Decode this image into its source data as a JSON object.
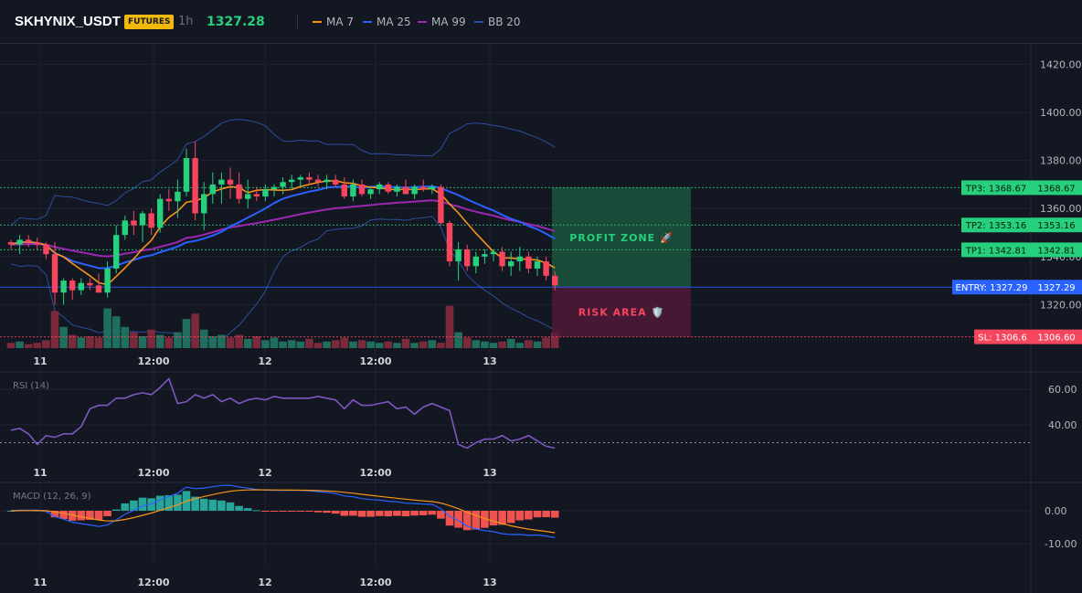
{
  "header": {
    "symbol": "SKHYNIX_USDT",
    "badge": "FUTURES",
    "timeframe": "1h",
    "price": "1327.28",
    "legend": [
      {
        "label": "MA 7",
        "color": "#f7931a"
      },
      {
        "label": "MA 25",
        "color": "#2962ff"
      },
      {
        "label": "MA 99",
        "color": "#9c27b0"
      },
      {
        "label": "BB 20",
        "color": "#1e3a8a"
      }
    ]
  },
  "colors": {
    "background": "#131722",
    "up": "#26d07c",
    "down": "#f6465d",
    "tp": "#26d07c",
    "entry": "#2962ff",
    "sl": "#f6465d",
    "rsi": "#7e57c2",
    "macd_line": "#2962ff",
    "signal_line": "#f7931a"
  },
  "annotations": {
    "profit_zone": "PROFIT ZONE 🚀",
    "risk_area": "RISK AREA 🛡️",
    "tp3_label": "TP3: 1368.67",
    "tp3_value": "1368.67",
    "tp2_label": "TP2: 1353.16",
    "tp2_value": "1353.16",
    "tp1_label": "TP1: 1342.81",
    "tp1_value": "1342.81",
    "entry_label": "ENTRY: 1327.29",
    "entry_value": "1327.29",
    "sl_label": "SL: 1306.6",
    "sl_value": "1306.60"
  },
  "chart_data": [
    {
      "type": "candlestick",
      "xlabels": [
        "11",
        "12:00",
        "12",
        "12:00",
        "13"
      ],
      "ylim": [
        1300,
        1430
      ],
      "yticks": [
        "1420.00",
        "1400.00",
        "1380.00",
        "1360.00",
        "1340.00",
        "1320.00"
      ],
      "levels": {
        "tp3": 1368.67,
        "tp2": 1353.16,
        "tp1": 1342.81,
        "entry": 1327.29,
        "sl": 1306.6
      },
      "candles": [
        [
          1346,
          1347,
          1343,
          1345
        ],
        [
          1345,
          1349,
          1341,
          1347
        ],
        [
          1347,
          1349,
          1344,
          1346
        ],
        [
          1346,
          1348,
          1343,
          1345
        ],
        [
          1345,
          1346,
          1339,
          1341
        ],
        [
          1341,
          1346,
          1320,
          1325
        ],
        [
          1325,
          1331,
          1320,
          1330
        ],
        [
          1330,
          1331,
          1322,
          1326
        ],
        [
          1326,
          1331,
          1324,
          1329
        ],
        [
          1329,
          1331,
          1326,
          1328
        ],
        [
          1328,
          1333,
          1325,
          1325
        ],
        [
          1325,
          1338,
          1323,
          1335
        ],
        [
          1335,
          1353,
          1333,
          1349
        ],
        [
          1349,
          1357,
          1347,
          1355
        ],
        [
          1355,
          1359,
          1349,
          1353
        ],
        [
          1353,
          1359,
          1346,
          1358
        ],
        [
          1358,
          1360,
          1349,
          1352
        ],
        [
          1352,
          1366,
          1350,
          1364
        ],
        [
          1364,
          1368,
          1359,
          1363
        ],
        [
          1363,
          1372,
          1356,
          1367
        ],
        [
          1367,
          1385,
          1365,
          1381
        ],
        [
          1381,
          1388,
          1355,
          1358
        ],
        [
          1358,
          1371,
          1351,
          1366
        ],
        [
          1366,
          1375,
          1362,
          1370
        ],
        [
          1370,
          1375,
          1362,
          1372
        ],
        [
          1372,
          1377,
          1364,
          1370
        ],
        [
          1370,
          1375,
          1362,
          1364
        ],
        [
          1364,
          1372,
          1360,
          1366
        ],
        [
          1366,
          1369,
          1363,
          1365
        ],
        [
          1365,
          1370,
          1363,
          1368
        ],
        [
          1368,
          1370,
          1365,
          1369
        ],
        [
          1369,
          1373,
          1366,
          1371
        ],
        [
          1371,
          1374,
          1368,
          1372
        ],
        [
          1372,
          1374,
          1369,
          1373
        ],
        [
          1373,
          1375,
          1370,
          1372
        ],
        [
          1372,
          1374,
          1369,
          1371
        ],
        [
          1371,
          1374,
          1368,
          1372
        ],
        [
          1372,
          1374,
          1369,
          1370
        ],
        [
          1370,
          1373,
          1364,
          1365
        ],
        [
          1365,
          1372,
          1363,
          1370
        ],
        [
          1370,
          1372,
          1365,
          1366
        ],
        [
          1366,
          1369,
          1364,
          1368
        ],
        [
          1368,
          1371,
          1366,
          1370
        ],
        [
          1370,
          1371,
          1366,
          1367
        ],
        [
          1367,
          1370,
          1365,
          1369
        ],
        [
          1369,
          1372,
          1366,
          1366
        ],
        [
          1366,
          1370,
          1364,
          1369
        ],
        [
          1369,
          1372,
          1367,
          1368
        ],
        [
          1368,
          1370,
          1366,
          1369
        ],
        [
          1369,
          1370,
          1353,
          1354
        ],
        [
          1354,
          1355,
          1336,
          1338
        ],
        [
          1338,
          1346,
          1330,
          1343
        ],
        [
          1343,
          1345,
          1334,
          1336
        ],
        [
          1336,
          1342,
          1333,
          1340
        ],
        [
          1340,
          1343,
          1337,
          1341
        ],
        [
          1341,
          1343,
          1338,
          1342
        ],
        [
          1342,
          1344,
          1334,
          1336
        ],
        [
          1336,
          1342,
          1332,
          1338
        ],
        [
          1338,
          1344,
          1334,
          1340
        ],
        [
          1340,
          1342,
          1333,
          1335
        ],
        [
          1335,
          1340,
          1332,
          1338
        ],
        [
          1338,
          1340,
          1330,
          1332
        ],
        [
          1332,
          1334,
          1326,
          1328
        ]
      ],
      "volume": [
        4,
        5,
        3,
        4,
        6,
        28,
        16,
        10,
        8,
        9,
        8,
        30,
        24,
        16,
        12,
        9,
        14,
        10,
        8,
        12,
        22,
        26,
        14,
        9,
        10,
        8,
        10,
        7,
        9,
        6,
        8,
        5,
        6,
        5,
        7,
        4,
        5,
        6,
        8,
        5,
        6,
        5,
        4,
        5,
        4,
        7,
        4,
        5,
        6,
        4,
        32,
        12,
        8,
        6,
        5,
        4,
        5,
        7,
        4,
        6,
        5,
        8,
        12
      ]
    },
    {
      "type": "line",
      "name": "RSI (14)",
      "ylim": [
        25,
        70
      ],
      "yticks": [
        "60.00",
        "40.00"
      ],
      "reference": 30,
      "values": [
        37,
        38,
        35,
        29,
        34,
        33,
        35,
        35,
        39,
        49,
        51,
        51,
        55,
        55,
        57,
        58,
        57,
        61,
        66,
        52,
        53,
        57,
        55,
        57,
        53,
        55,
        52,
        54,
        55,
        54,
        56,
        55,
        55,
        55,
        55,
        56,
        55,
        54,
        49,
        54,
        51,
        51,
        52,
        53,
        49,
        50,
        46,
        50,
        52,
        50,
        48,
        29,
        27,
        30,
        32,
        32,
        34,
        31,
        32,
        34,
        31,
        28,
        27
      ]
    }
  ]
}
